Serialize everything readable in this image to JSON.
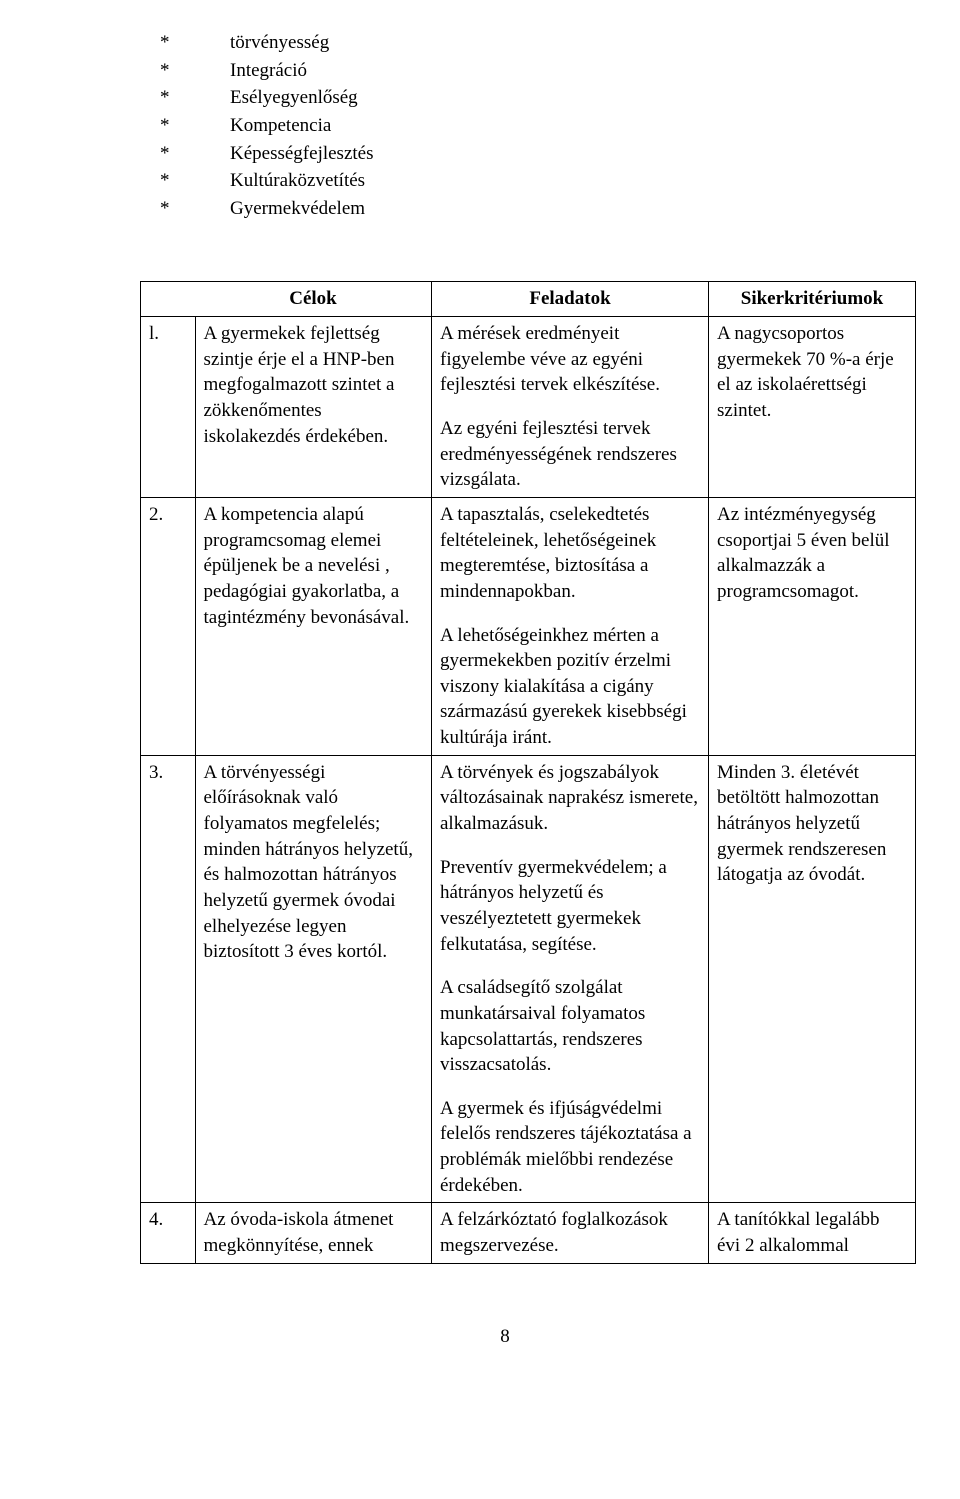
{
  "bullets": [
    "törvényesség",
    "Integráció",
    "Esélyegyenlőség",
    "Kompetencia",
    "Képességfejlesztés",
    "Kultúraközvetítés",
    "Gyermekvédelem"
  ],
  "bullet_marker": "*",
  "table": {
    "headers": {
      "goals": "Célok",
      "tasks": "Feladatok",
      "criteria": "Sikerkritériumok"
    },
    "rows": [
      {
        "num": "l.",
        "goal": "A gyermekek fejlettség szintje érje el a HNP-ben megfogalmazott szintet a zökkenőmentes iskolakezdés érdekében.",
        "tasks": [
          "A mérések eredményeit figyelembe véve az egyéni fejlesztési tervek elkészítése.",
          "Az egyéni fejlesztési tervek eredményességének rendszeres vizsgálata."
        ],
        "criteria": "A nagycsoportos gyermekek 70 %-a érje el az iskolaérettségi szintet."
      },
      {
        "num": "2.",
        "goal": "A kompetencia alapú programcsomag elemei épüljenek be a nevelési , pedagógiai gyakorlatba, a tagintézmény bevonásával.",
        "tasks": [
          "A tapasztalás, cselekedtetés feltételeinek, lehetőségeinek megteremtése, biztosítása a mindennapokban.",
          "A lehetőségeinkhez mérten a gyermekekben pozitív érzelmi viszony kialakítása a cigány származású gyerekek kisebbségi kultúrája iránt."
        ],
        "criteria": "Az intézményegység csoportjai 5 éven belül alkalmazzák a programcsomagot."
      },
      {
        "num": "3.",
        "goal": "A törvényességi előírásoknak való folyamatos megfelelés; minden hátrányos helyzetű, és halmozottan hátrányos helyzetű gyermek óvodai elhelyezése legyen biztosított 3 éves kortól.",
        "tasks": [
          "A törvények és jogszabályok változásainak naprakész ismerete, alkalmazásuk.",
          "Preventív gyermekvédelem; a hátrányos helyzetű és veszélyeztetett gyermekek felkutatása, segítése.",
          "A családsegítő szolgálat munkatársaival folyamatos kapcsolattartás, rendszeres visszacsatolás.",
          "A gyermek és ifjúságvédelmi felelős rendszeres tájékoztatása a problémák mielőbbi rendezése érdekében."
        ],
        "criteria": "Minden 3. életévét betöltött halmozottan hátrányos helyzetű gyermek rendszeresen látogatja az óvodát."
      },
      {
        "num": "4.",
        "goal": "Az óvoda-iskola átmenet megkönnyítése, ennek",
        "tasks": [
          "A felzárkóztató foglalkozások megszervezése."
        ],
        "criteria": "A tanítókkal legalább évi 2 alkalommal"
      }
    ]
  },
  "page_number": "8",
  "style": {
    "background_color": "#ffffff",
    "text_color": "#000000",
    "font_family": "Times New Roman",
    "base_fontsize_pt": 14,
    "border_color": "#000000"
  }
}
